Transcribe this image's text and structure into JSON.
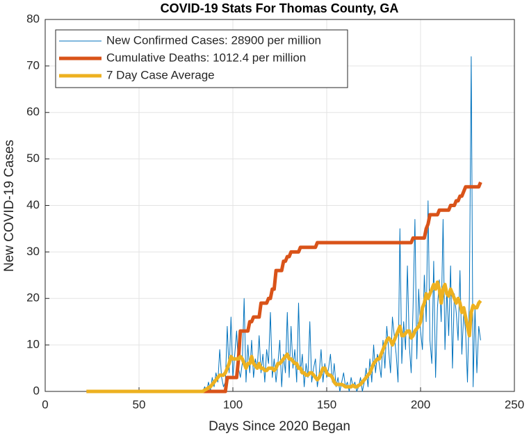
{
  "chart_data": {
    "type": "line",
    "title": "COVID-19 Stats For Thomas County, GA",
    "xlabel": "Days Since 2020 Began",
    "ylabel": "New COVID-19 Cases",
    "xlim": [
      0,
      250
    ],
    "xticks": [
      0,
      50,
      100,
      150,
      200,
      250
    ],
    "ylim": [
      0,
      80
    ],
    "yticks": [
      0,
      10,
      20,
      30,
      40,
      50,
      60,
      70,
      80
    ],
    "grid": true,
    "legend": "upper left",
    "x": [
      22,
      23,
      24,
      25,
      26,
      27,
      28,
      29,
      30,
      31,
      32,
      33,
      34,
      35,
      36,
      37,
      38,
      39,
      40,
      41,
      42,
      43,
      44,
      45,
      46,
      47,
      48,
      49,
      50,
      51,
      52,
      53,
      54,
      55,
      56,
      57,
      58,
      59,
      60,
      61,
      62,
      63,
      64,
      65,
      66,
      67,
      68,
      69,
      70,
      71,
      72,
      73,
      74,
      75,
      76,
      77,
      78,
      79,
      80,
      81,
      82,
      83,
      84,
      85,
      86,
      87,
      88,
      89,
      90,
      91,
      92,
      93,
      94,
      95,
      96,
      97,
      98,
      99,
      100,
      101,
      102,
      103,
      104,
      105,
      106,
      107,
      108,
      109,
      110,
      111,
      112,
      113,
      114,
      115,
      116,
      117,
      118,
      119,
      120,
      121,
      122,
      123,
      124,
      125,
      126,
      127,
      128,
      129,
      130,
      131,
      132,
      133,
      134,
      135,
      136,
      137,
      138,
      139,
      140,
      141,
      142,
      143,
      144,
      145,
      146,
      147,
      148,
      149,
      150,
      151,
      152,
      153,
      154,
      155,
      156,
      157,
      158,
      159,
      160,
      161,
      162,
      163,
      164,
      165,
      166,
      167,
      168,
      169,
      170,
      171,
      172,
      173,
      174,
      175,
      176,
      177,
      178,
      179,
      180,
      181,
      182,
      183,
      184,
      185,
      186,
      187,
      188,
      189,
      190,
      191,
      192,
      193,
      194,
      195,
      196,
      197,
      198,
      199,
      200,
      201,
      202,
      203,
      204,
      205,
      206,
      207,
      208,
      209,
      210,
      211,
      212,
      213,
      214,
      215,
      216,
      217,
      218,
      219,
      220,
      221,
      222,
      223,
      224,
      225,
      226,
      227,
      228,
      229,
      230,
      231,
      232
    ],
    "series": [
      {
        "name": "New Confirmed Cases: 28900 per million",
        "color": "#0072bd",
        "width": 1,
        "values": [
          0,
          0,
          0,
          0,
          0,
          0,
          0,
          0,
          0,
          0,
          0,
          0,
          0,
          0,
          0,
          0,
          0,
          0,
          0,
          0,
          0,
          0,
          0,
          0,
          0,
          0,
          0,
          0,
          0,
          0,
          0,
          0,
          0,
          0,
          0,
          0,
          0,
          0,
          0,
          0,
          0,
          0,
          0,
          0,
          0,
          0,
          0,
          0,
          0,
          0,
          0,
          0,
          0,
          0,
          0,
          0,
          0,
          0,
          0,
          0,
          0,
          0,
          0,
          1,
          0,
          2,
          0,
          3,
          1,
          4,
          2,
          9,
          3,
          1,
          2,
          14,
          4,
          16,
          3,
          8,
          13,
          5,
          3,
          6,
          20,
          2,
          10,
          4,
          11,
          3,
          7,
          5,
          12,
          4,
          8,
          2,
          9,
          6,
          17,
          3,
          7,
          2,
          6,
          11,
          1,
          8,
          4,
          17,
          3,
          14,
          5,
          9,
          2,
          19,
          4,
          8,
          1,
          6,
          3,
          15,
          2,
          5,
          7,
          1,
          4,
          9,
          2,
          6,
          3,
          5,
          8,
          2,
          6,
          1,
          3,
          0,
          2,
          4,
          1,
          2,
          0,
          3,
          1,
          2,
          0,
          1,
          3,
          0,
          2,
          5,
          1,
          7,
          2,
          10,
          4,
          8,
          6,
          3,
          11,
          5,
          14,
          9,
          4,
          16,
          12,
          8,
          2,
          35,
          6,
          15,
          9,
          27,
          10,
          4,
          18,
          37,
          7,
          22,
          13,
          9,
          25,
          15,
          41,
          11,
          6,
          28,
          3,
          18,
          24,
          15,
          37,
          9,
          22,
          12,
          27,
          5,
          21,
          17,
          11,
          26,
          8,
          17,
          13,
          2,
          20,
          72,
          1,
          18,
          4,
          14,
          11
        ]
      },
      {
        "name": "Cumulative Deaths: 1012.4 per million",
        "color": "#d95319",
        "width": 5,
        "values": [
          0,
          0,
          0,
          0,
          0,
          0,
          0,
          0,
          0,
          0,
          0,
          0,
          0,
          0,
          0,
          0,
          0,
          0,
          0,
          0,
          0,
          0,
          0,
          0,
          0,
          0,
          0,
          0,
          0,
          0,
          0,
          0,
          0,
          0,
          0,
          0,
          0,
          0,
          0,
          0,
          0,
          0,
          0,
          0,
          0,
          0,
          0,
          0,
          0,
          0,
          0,
          0,
          0,
          0,
          0,
          0,
          0,
          0,
          0,
          0,
          0,
          0,
          0,
          0,
          0,
          0,
          0,
          0,
          0,
          0,
          0,
          0,
          0,
          0,
          0,
          3,
          3,
          3,
          3,
          3,
          3,
          7,
          13,
          13,
          13,
          13,
          13,
          15,
          15,
          16,
          16,
          16,
          16,
          19,
          19,
          19,
          19,
          20,
          20,
          22,
          22,
          26,
          26,
          26,
          26,
          28,
          28,
          29,
          29,
          30,
          30,
          30,
          30,
          30,
          31,
          31,
          31,
          31,
          31,
          31,
          31,
          31,
          31,
          32,
          32,
          32,
          32,
          32,
          32,
          32,
          32,
          32,
          32,
          32,
          32,
          32,
          32,
          32,
          32,
          32,
          32,
          32,
          32,
          32,
          32,
          32,
          32,
          32,
          32,
          32,
          32,
          32,
          32,
          32,
          32,
          32,
          32,
          32,
          32,
          32,
          32,
          32,
          32,
          32,
          32,
          32,
          32,
          32,
          32,
          32,
          32,
          32,
          32,
          32,
          33,
          33,
          33,
          33,
          33,
          33,
          33,
          35,
          36,
          38,
          38,
          38,
          38,
          38,
          39,
          39,
          39,
          39,
          39,
          39,
          40,
          40,
          40,
          41,
          41,
          42,
          42,
          43,
          44,
          44,
          44,
          44,
          44,
          44,
          44,
          44,
          45
        ]
      },
      {
        "name": "7 Day Case Average",
        "color": "#edb120",
        "width": 5,
        "values": [
          0,
          0,
          0,
          0,
          0,
          0,
          0,
          0,
          0,
          0,
          0,
          0,
          0,
          0,
          0,
          0,
          0,
          0,
          0,
          0,
          0,
          0,
          0,
          0,
          0,
          0,
          0,
          0,
          0,
          0,
          0,
          0,
          0,
          0,
          0,
          0,
          0,
          0,
          0,
          0,
          0,
          0,
          0,
          0,
          0,
          0,
          0,
          0,
          0,
          0,
          0,
          0,
          0,
          0,
          0,
          0,
          0,
          0,
          0,
          0,
          0,
          0,
          0,
          0.3,
          0.5,
          0.8,
          1,
          1.5,
          2,
          2.5,
          3,
          3.5,
          3.5,
          3.5,
          4,
          5,
          6,
          7.5,
          7,
          7,
          7,
          7,
          7.5,
          7,
          6,
          5,
          6,
          6,
          7.5,
          6,
          5.5,
          5,
          6,
          5,
          5,
          4.5,
          4.5,
          5,
          5,
          5,
          4.5,
          5,
          6,
          6,
          6.5,
          7,
          7.5,
          8,
          7,
          7,
          6.5,
          6,
          6,
          5,
          5,
          4,
          4,
          3.5,
          3.5,
          4,
          4,
          3.5,
          3,
          2.5,
          3,
          4,
          5,
          5,
          4,
          3.5,
          3.5,
          3,
          2,
          1.5,
          1.5,
          1.5,
          1.5,
          1.3,
          1,
          1,
          1,
          1,
          1.3,
          1,
          1,
          1.3,
          1.5,
          2,
          2.5,
          3,
          3.5,
          4,
          5,
          6,
          6.5,
          7,
          7,
          8,
          9,
          10,
          11,
          11.5,
          11,
          10,
          11,
          12,
          13,
          14,
          12,
          12,
          12.5,
          13,
          13,
          11.5,
          12,
          13,
          13.5,
          14,
          15,
          18,
          19,
          21,
          20,
          21,
          22,
          23,
          22,
          23.5,
          22,
          19,
          22,
          23,
          21,
          20.5,
          22,
          21,
          20,
          19,
          20,
          19,
          17,
          18,
          16,
          14,
          12,
          17,
          18.5,
          18,
          18,
          19,
          19.5
        ]
      }
    ]
  }
}
